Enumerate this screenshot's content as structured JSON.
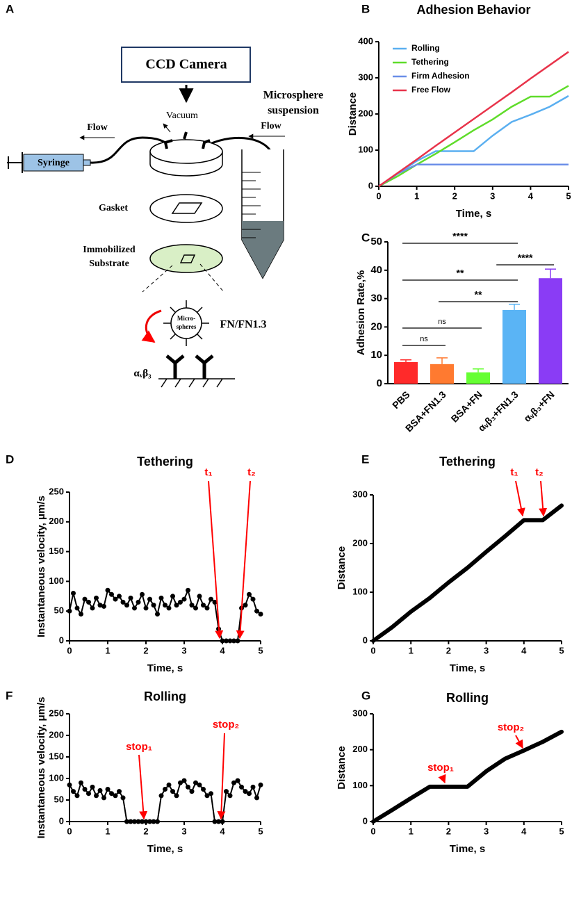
{
  "panel_labels": [
    "A",
    "B",
    "C",
    "D",
    "E",
    "F",
    "G"
  ],
  "diagram": {
    "camera": "CCD Camera",
    "vacuum": "Vacuum",
    "flow_left": "Flow",
    "flow_right": "Flow",
    "suspension": [
      "Microsphere",
      "suspension"
    ],
    "syringe": "Syringe",
    "gasket": "Gasket",
    "substrate": [
      "Immobilized",
      "Substrate"
    ],
    "microspheres": [
      "Micro-",
      "spheres"
    ],
    "ligand": "FN/FN1.3",
    "receptor": "αᵥβ₃"
  },
  "chart_data": [
    {
      "type": "line",
      "title": "Adhesion Behavior",
      "x_label": "Time, s",
      "y_label": "Distance",
      "x": [
        0,
        0.5,
        1,
        1.5,
        2,
        2.5,
        3,
        3.5,
        4,
        4.5,
        5
      ],
      "series": [
        {
          "name": "Rolling",
          "color": "#5aaff0",
          "values": [
            0,
            35,
            70,
            97,
            97,
            97,
            140,
            178,
            198,
            220,
            250
          ]
        },
        {
          "name": "Tethering",
          "color": "#5fdc2a",
          "values": [
            0,
            28,
            60,
            90,
            122,
            155,
            185,
            220,
            248,
            248,
            278
          ]
        },
        {
          "name": "Firm Adhesion",
          "color": "#6a8ee8",
          "values": [
            0,
            35,
            60,
            60,
            60,
            60,
            60,
            60,
            60,
            60,
            60
          ]
        },
        {
          "name": "Free Flow",
          "color": "#e8334a",
          "values": [
            0,
            37,
            74,
            112,
            149,
            186,
            223,
            260,
            298,
            335,
            372
          ]
        }
      ],
      "xlim": [
        0,
        5
      ],
      "xticks": [
        0,
        1,
        2,
        3,
        4,
        5
      ],
      "ylim": [
        0,
        400
      ],
      "yticks": [
        0,
        100,
        200,
        300,
        400
      ],
      "legend": "upper-left"
    },
    {
      "type": "bar",
      "y_label": "Adhesion Rate,%",
      "categories": [
        "PBS",
        "BSA+FN1.3",
        "BSA+FN",
        "αᵥβ₃+FN1.3",
        "αᵥβ₃+FN"
      ],
      "values": [
        7.6,
        6.9,
        4.0,
        26.0,
        37.2
      ],
      "errors": [
        0.8,
        2.2,
        1.2,
        2.0,
        3.2
      ],
      "colors": [
        "#ff2a2a",
        "#ff7a30",
        "#66ff33",
        "#5ab4f5",
        "#8a3cf5"
      ],
      "ylim": [
        0,
        50
      ],
      "yticks": [
        0,
        10,
        20,
        30,
        40,
        50
      ],
      "annotations": [
        "****",
        "****",
        "**",
        "**",
        "ns",
        "ns"
      ]
    },
    {
      "type": "scatter",
      "title": "Tethering",
      "x_label": "Time, s",
      "y_label": "Instantaneous velocity, μm/s",
      "x": [
        0,
        0.1,
        0.2,
        0.3,
        0.4,
        0.5,
        0.6,
        0.7,
        0.8,
        0.9,
        1,
        1.1,
        1.2,
        1.3,
        1.4,
        1.5,
        1.6,
        1.7,
        1.8,
        1.9,
        2,
        2.1,
        2.2,
        2.3,
        2.4,
        2.5,
        2.6,
        2.7,
        2.8,
        2.9,
        3,
        3.1,
        3.2,
        3.3,
        3.4,
        3.5,
        3.6,
        3.7,
        3.8,
        3.9,
        4,
        4.1,
        4.2,
        4.3,
        4.4,
        4.5,
        4.6,
        4.7,
        4.8,
        4.9,
        5
      ],
      "values": [
        50,
        80,
        55,
        45,
        70,
        65,
        55,
        72,
        60,
        58,
        85,
        78,
        70,
        75,
        65,
        60,
        72,
        55,
        65,
        78,
        55,
        70,
        60,
        45,
        72,
        60,
        55,
        75,
        60,
        65,
        70,
        85,
        60,
        55,
        75,
        60,
        55,
        70,
        65,
        20,
        0,
        0,
        0,
        0,
        0,
        55,
        60,
        78,
        70,
        50,
        45
      ],
      "color": "#000000",
      "xlim": [
        0,
        5
      ],
      "xticks": [
        0,
        1,
        2,
        3,
        4,
        5
      ],
      "ylim": [
        0,
        250
      ],
      "yticks": [
        0,
        50,
        100,
        150,
        200,
        250
      ],
      "annotations": [
        "t₁",
        "t₂"
      ],
      "annotation_color": "#ff0000"
    },
    {
      "type": "line",
      "title": "Tethering",
      "x_label": "Time, s",
      "y_label": "Distance",
      "x": [
        0,
        0.5,
        1,
        1.5,
        2,
        2.5,
        3,
        3.5,
        4,
        4.5,
        5
      ],
      "values": [
        0,
        28,
        60,
        88,
        120,
        150,
        183,
        215,
        248,
        248,
        278
      ],
      "color": "#000000",
      "xlim": [
        0,
        5
      ],
      "xticks": [
        0,
        1,
        2,
        3,
        4,
        5
      ],
      "ylim": [
        0,
        300
      ],
      "yticks": [
        0,
        100,
        200,
        300
      ],
      "annotations": [
        "t₁",
        "t₂"
      ],
      "annotation_color": "#ff0000"
    },
    {
      "type": "scatter",
      "title": "Rolling",
      "x_label": "Time, s",
      "y_label": "Instantaneous velocity, μm/s",
      "x": [
        0,
        0.1,
        0.2,
        0.3,
        0.4,
        0.5,
        0.6,
        0.7,
        0.8,
        0.9,
        1,
        1.1,
        1.2,
        1.3,
        1.4,
        1.5,
        1.6,
        1.7,
        1.8,
        1.9,
        2,
        2.1,
        2.2,
        2.3,
        2.4,
        2.5,
        2.6,
        2.7,
        2.8,
        2.9,
        3,
        3.1,
        3.2,
        3.3,
        3.4,
        3.5,
        3.6,
        3.7,
        3.8,
        3.9,
        4,
        4.1,
        4.2,
        4.3,
        4.4,
        4.5,
        4.6,
        4.7,
        4.8,
        4.9,
        5
      ],
      "values": [
        85,
        70,
        60,
        90,
        75,
        65,
        80,
        60,
        72,
        55,
        75,
        65,
        60,
        70,
        55,
        0,
        0,
        0,
        0,
        0,
        0,
        0,
        0,
        0,
        60,
        75,
        85,
        70,
        60,
        90,
        95,
        80,
        70,
        90,
        85,
        75,
        60,
        65,
        0,
        0,
        0,
        70,
        60,
        90,
        95,
        80,
        70,
        65,
        80,
        55,
        85
      ],
      "color": "#000000",
      "xlim": [
        0,
        5
      ],
      "xticks": [
        0,
        1,
        2,
        3,
        4,
        5
      ],
      "ylim": [
        0,
        250
      ],
      "yticks": [
        0,
        50,
        100,
        150,
        200,
        250
      ],
      "annotations": [
        "stop₁",
        "stop₂"
      ],
      "annotation_color": "#ff0000"
    },
    {
      "type": "line",
      "title": "Rolling",
      "x_label": "Time, s",
      "y_label": "Distance",
      "x": [
        0,
        0.5,
        1,
        1.5,
        2,
        2.5,
        3,
        3.5,
        4,
        4.5,
        5
      ],
      "values": [
        0,
        32,
        65,
        97,
        97,
        97,
        140,
        175,
        198,
        222,
        250
      ],
      "color": "#000000",
      "xlim": [
        0,
        5
      ],
      "xticks": [
        0,
        1,
        2,
        3,
        4,
        5
      ],
      "ylim": [
        0,
        300
      ],
      "yticks": [
        0,
        100,
        200,
        300
      ],
      "annotations": [
        "stop₁",
        "stop₂"
      ],
      "annotation_color": "#ff0000"
    }
  ]
}
